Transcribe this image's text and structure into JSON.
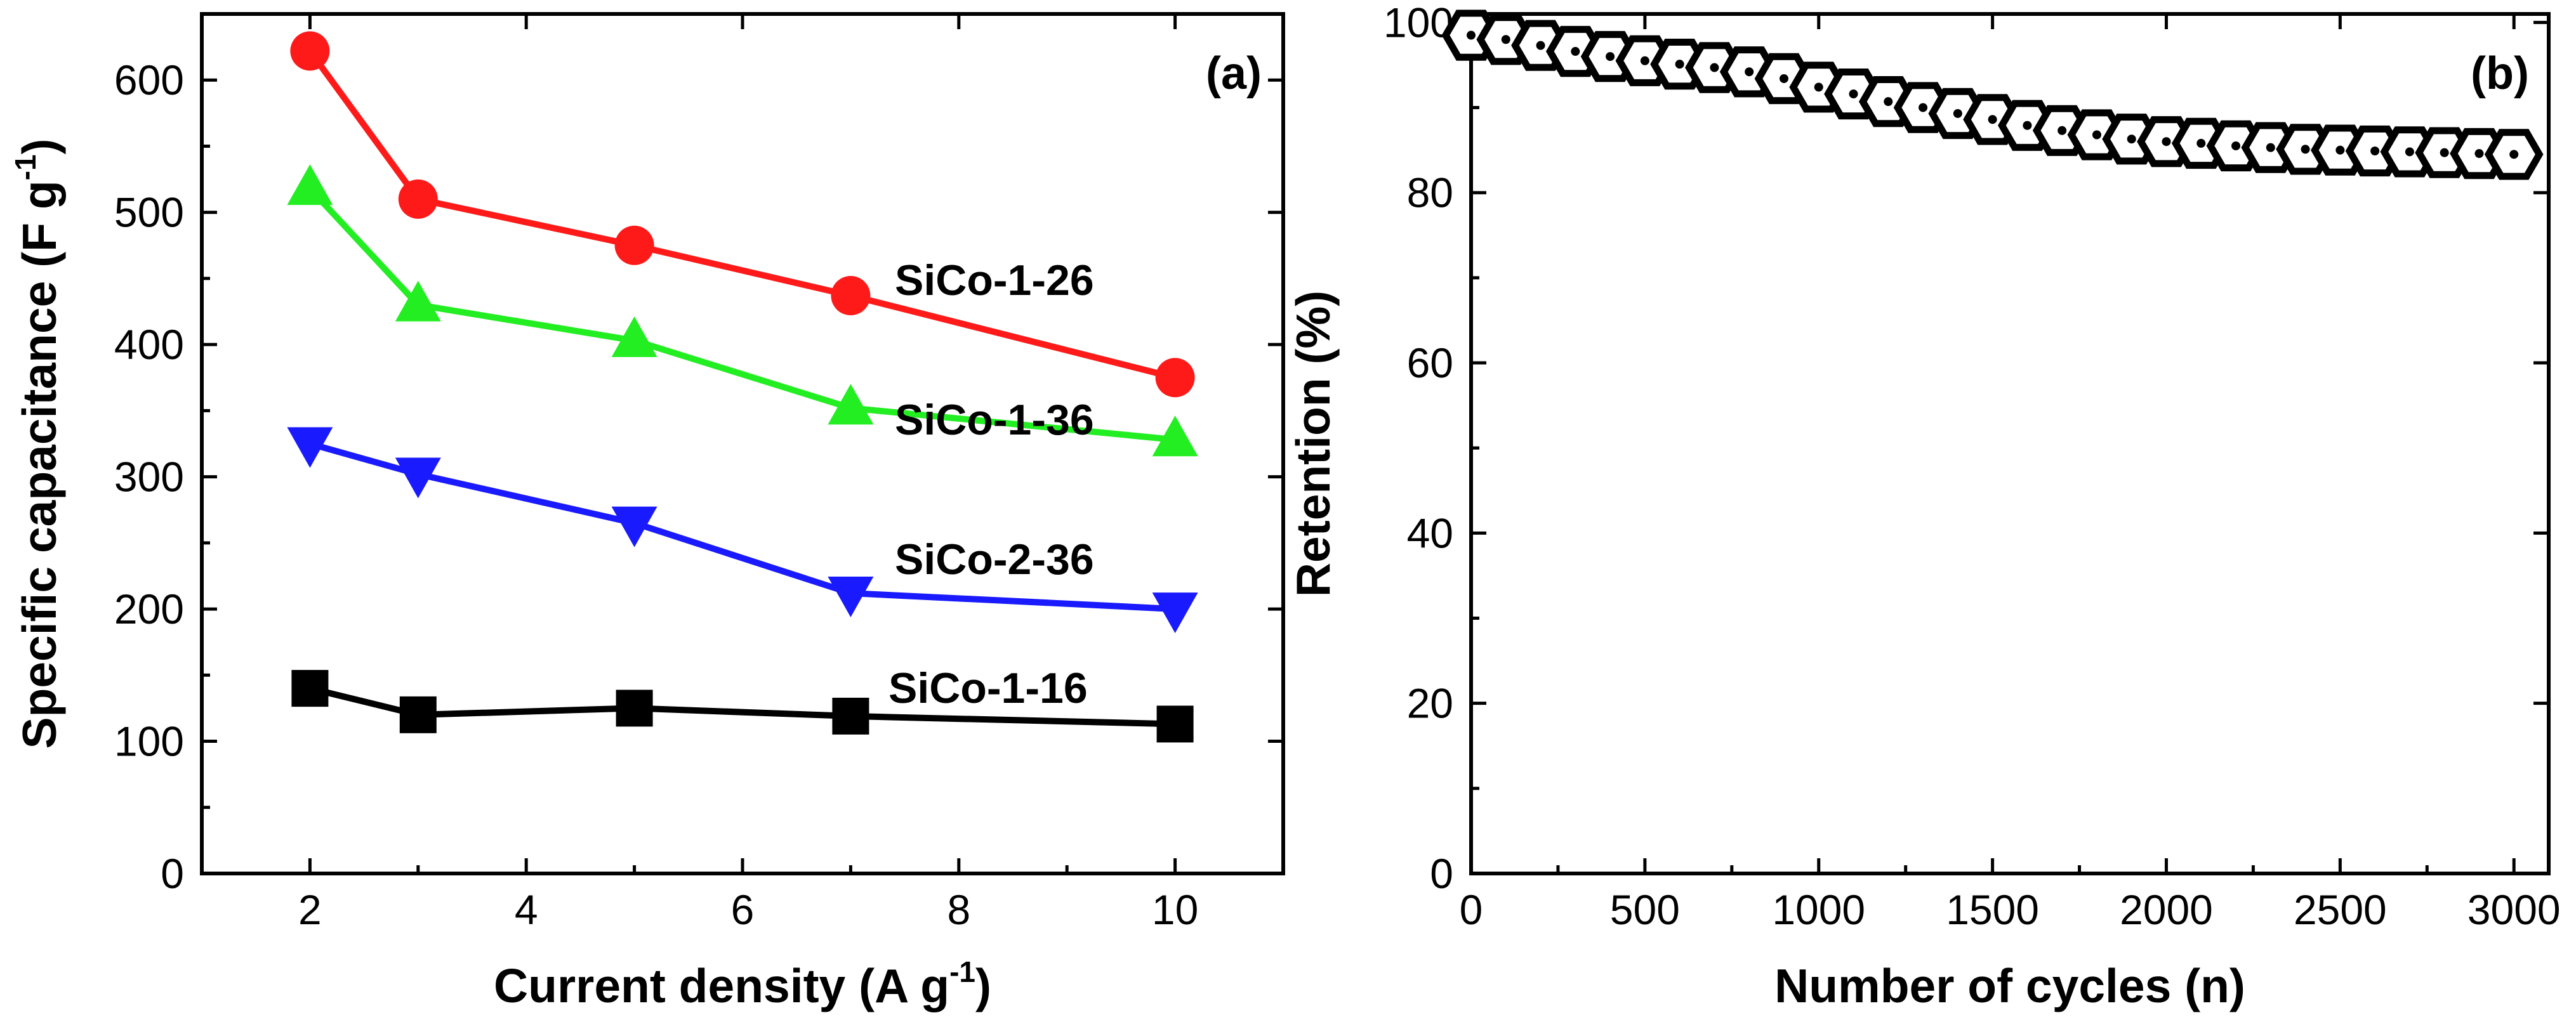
{
  "chart_data": [
    {
      "panel": "(a)",
      "type": "line",
      "xlabel": "Current density (A g",
      "xlabel_sup": "-1",
      "xlabel_end": ")",
      "ylabel": "Specific capacitance (F g",
      "ylabel_sup": "-1",
      "ylabel_end": ")",
      "xlim": [
        1,
        11
      ],
      "ylim": [
        0,
        650
      ],
      "xticks": [
        2,
        4,
        6,
        8,
        10
      ],
      "yticks": [
        0,
        100,
        200,
        300,
        400,
        500,
        600
      ],
      "x": [
        2,
        3,
        5,
        7,
        10
      ],
      "series": [
        {
          "name": "SiCo-1-26",
          "color": "#ff1a1a",
          "marker": "circle",
          "values": [
            622,
            510,
            475,
            437,
            375
          ]
        },
        {
          "name": "SiCo-1-36",
          "color": "#22ee22",
          "marker": "triangle-up",
          "values": [
            518,
            430,
            403,
            352,
            328
          ]
        },
        {
          "name": "SiCo-2-36",
          "color": "#1a1aff",
          "marker": "triangle-down",
          "values": [
            325,
            302,
            265,
            212,
            200
          ]
        },
        {
          "name": "SiCo-1-16",
          "color": "#000000",
          "marker": "square",
          "values": [
            140,
            120,
            125,
            119,
            113
          ]
        }
      ]
    },
    {
      "panel": "(b)",
      "type": "scatter",
      "xlabel": "Number of cycles (n)",
      "ylabel": "Retention (%)",
      "xlim": [
        0,
        3100
      ],
      "ylim": [
        0,
        101
      ],
      "xticks": [
        0,
        500,
        1000,
        1500,
        2000,
        2500,
        3000
      ],
      "yticks": [
        0,
        20,
        40,
        60,
        80,
        100
      ],
      "marker": "hexagon",
      "color": "#000000",
      "x": [
        0,
        100,
        200,
        300,
        400,
        500,
        600,
        700,
        800,
        900,
        1000,
        1100,
        1200,
        1300,
        1400,
        1500,
        1600,
        1700,
        1800,
        1900,
        2000,
        2100,
        2200,
        2300,
        2400,
        2500,
        2600,
        2700,
        2800,
        2900,
        3000
      ],
      "values": [
        98.5,
        98,
        97.3,
        96.6,
        96,
        95.5,
        95.1,
        94.7,
        94.2,
        93.4,
        92.4,
        91.6,
        90.7,
        90,
        89.3,
        88.6,
        87.9,
        87.3,
        86.8,
        86.3,
        86,
        85.8,
        85.5,
        85.3,
        85.1,
        85,
        84.9,
        84.8,
        84.7,
        84.6,
        84.5
      ]
    }
  ]
}
